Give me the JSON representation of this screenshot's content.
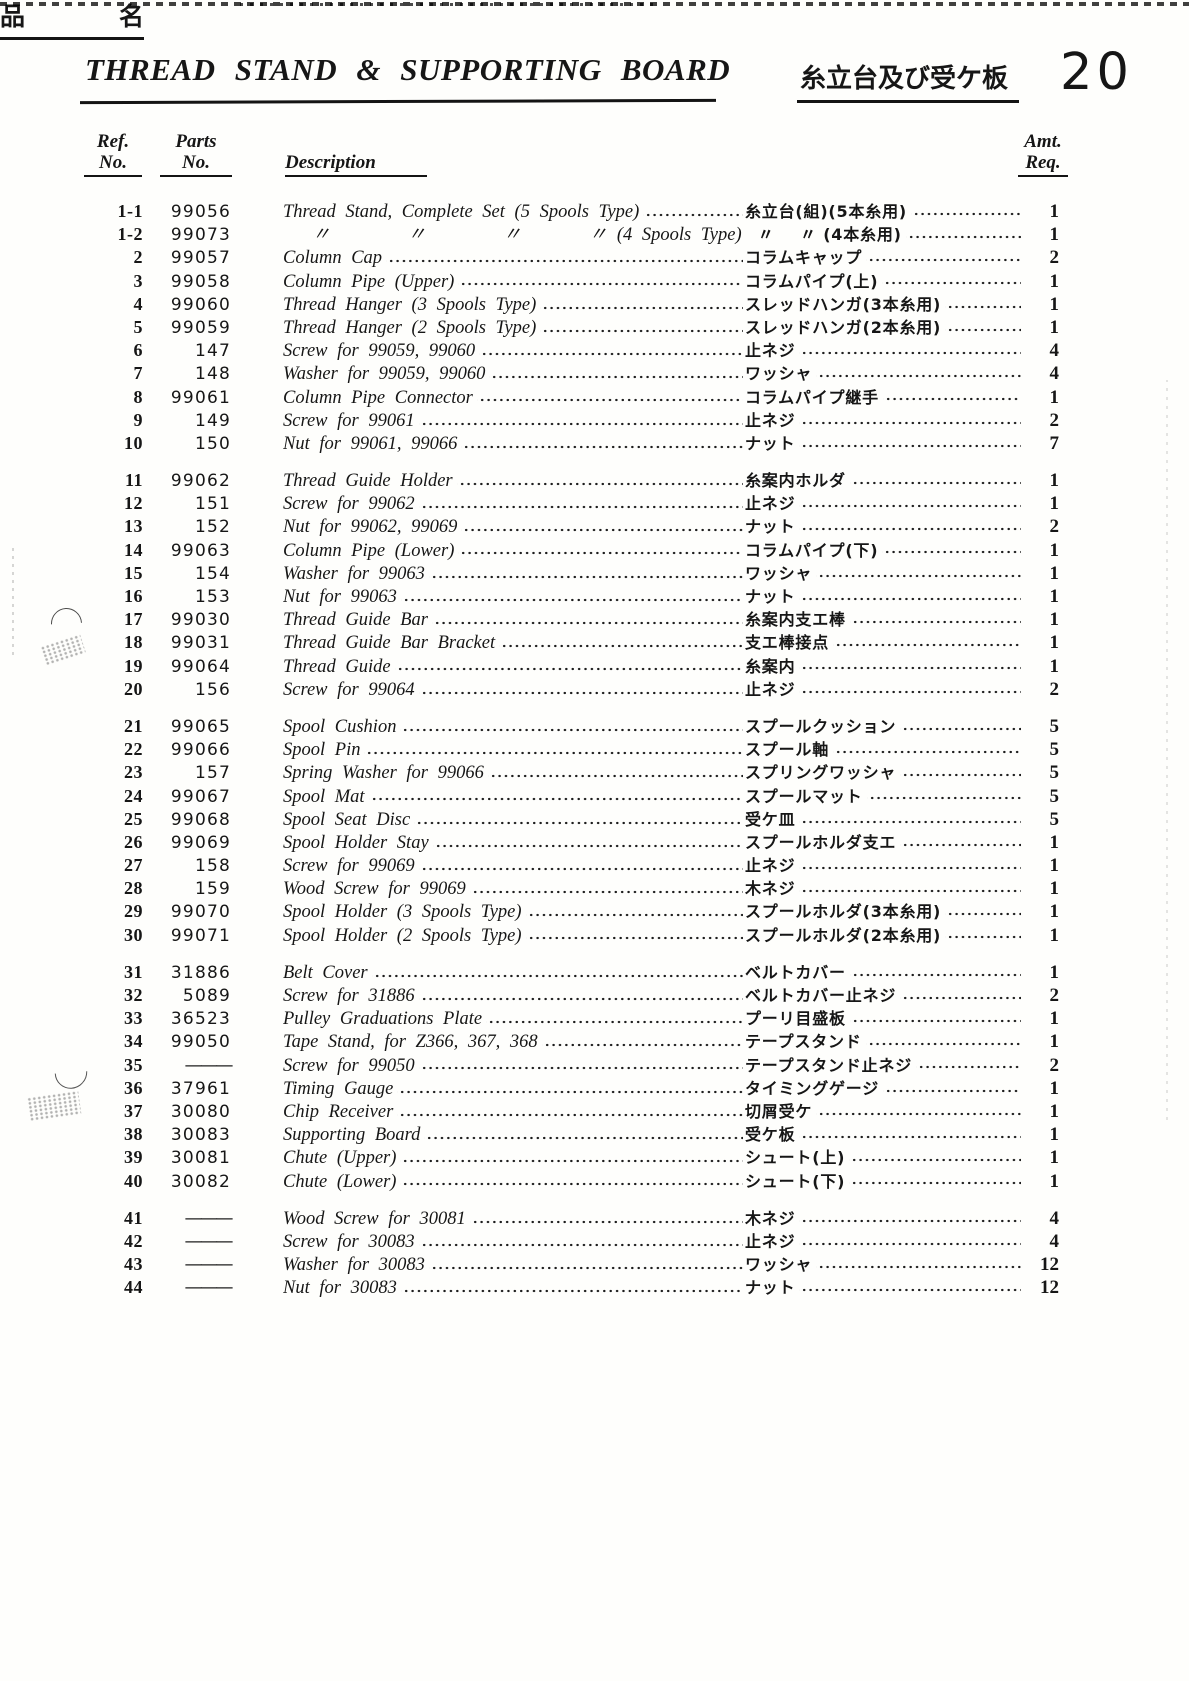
{
  "header": {
    "title_en": "THREAD STAND & SUPPORTING BOARD",
    "title_jp": "糸立台及び受ケ板",
    "page_number": "20"
  },
  "columns": {
    "ref_line1": "Ref.",
    "ref_line2": "No.",
    "parts_line1": "Parts",
    "parts_line2": "No.",
    "description": "Description",
    "name_jp_char1": "品",
    "name_jp_char2": "名",
    "amt_line1": "Amt.",
    "amt_line2": "Req."
  },
  "parts_table": {
    "groups": [
      {
        "rows": [
          {
            "ref": "1-1",
            "parts": "99056",
            "description": "Thread Stand, Complete Set (5 Spools Type)",
            "name_jp": "糸立台(組)(5本糸用)",
            "qty": "1"
          },
          {
            "ref": "1-2",
            "parts": "99073",
            "description": "   〃        〃        〃       〃 (4 Spools Type)",
            "name_jp": "  〃    〃 (4本糸用)",
            "qty": "1"
          },
          {
            "ref": "2",
            "parts": "99057",
            "description": "Column Cap",
            "name_jp": "コラムキャップ",
            "qty": "2"
          },
          {
            "ref": "3",
            "parts": "99058",
            "description": "Column Pipe (Upper)",
            "name_jp": "コラムパイプ(上)",
            "qty": "1"
          },
          {
            "ref": "4",
            "parts": "99060",
            "description": "Thread Hanger (3 Spools Type)",
            "name_jp": "スレッドハンガ(3本糸用)",
            "qty": "1"
          },
          {
            "ref": "5",
            "parts": "99059",
            "description": "Thread Hanger (2 Spools Type)",
            "name_jp": "スレッドハンガ(2本糸用)",
            "qty": "1"
          },
          {
            "ref": "6",
            "parts": "147",
            "description": "Screw for 99059, 99060",
            "name_jp": "止ネジ",
            "qty": "4"
          },
          {
            "ref": "7",
            "parts": "148",
            "description": "Washer for 99059, 99060",
            "name_jp": "ワッシャ",
            "qty": "4"
          },
          {
            "ref": "8",
            "parts": "99061",
            "description": "Column Pipe Connector",
            "name_jp": "コラムパイプ継手",
            "qty": "1"
          },
          {
            "ref": "9",
            "parts": "149",
            "description": "Screw for 99061",
            "name_jp": "止ネジ",
            "qty": "2"
          },
          {
            "ref": "10",
            "parts": "150",
            "description": "Nut for 99061, 99066",
            "name_jp": "ナット",
            "qty": "7"
          }
        ]
      },
      {
        "rows": [
          {
            "ref": "11",
            "parts": "99062",
            "description": "Thread Guide Holder",
            "name_jp": "糸案内ホルダ",
            "qty": "1"
          },
          {
            "ref": "12",
            "parts": "151",
            "description": "Screw for 99062",
            "name_jp": "止ネジ",
            "qty": "1"
          },
          {
            "ref": "13",
            "parts": "152",
            "description": "Nut for 99062, 99069",
            "name_jp": "ナット",
            "qty": "2"
          },
          {
            "ref": "14",
            "parts": "99063",
            "description": "Column Pipe (Lower)",
            "name_jp": "コラムパイプ(下)",
            "qty": "1"
          },
          {
            "ref": "15",
            "parts": "154",
            "description": "Washer for 99063",
            "name_jp": "ワッシャ",
            "qty": "1"
          },
          {
            "ref": "16",
            "parts": "153",
            "description": "Nut for 99063",
            "name_jp": "ナット",
            "qty": "1"
          },
          {
            "ref": "17",
            "parts": "99030",
            "description": "Thread Guide Bar",
            "name_jp": "糸案内支エ棒",
            "qty": "1"
          },
          {
            "ref": "18",
            "parts": "99031",
            "description": "Thread Guide Bar Bracket",
            "name_jp": "支エ棒接点",
            "qty": "1"
          },
          {
            "ref": "19",
            "parts": "99064",
            "description": "Thread Guide",
            "name_jp": "糸案内",
            "qty": "1"
          },
          {
            "ref": "20",
            "parts": "156",
            "description": "Screw for 99064",
            "name_jp": "止ネジ",
            "qty": "2"
          }
        ]
      },
      {
        "rows": [
          {
            "ref": "21",
            "parts": "99065",
            "description": "Spool Cushion",
            "name_jp": "スプールクッション",
            "qty": "5"
          },
          {
            "ref": "22",
            "parts": "99066",
            "description": "Spool Pin",
            "name_jp": "スプール軸",
            "qty": "5"
          },
          {
            "ref": "23",
            "parts": "157",
            "description": "Spring Washer for 99066",
            "name_jp": "スプリングワッシャ",
            "qty": "5"
          },
          {
            "ref": "24",
            "parts": "99067",
            "description": "Spool Mat",
            "name_jp": "スプールマット",
            "qty": "5"
          },
          {
            "ref": "25",
            "parts": "99068",
            "description": "Spool Seat Disc",
            "name_jp": "受ケ皿",
            "qty": "5"
          },
          {
            "ref": "26",
            "parts": "99069",
            "description": "Spool Holder Stay",
            "name_jp": "スプールホルダ支エ",
            "qty": "1"
          },
          {
            "ref": "27",
            "parts": "158",
            "description": "Screw for 99069",
            "name_jp": "止ネジ",
            "qty": "1"
          },
          {
            "ref": "28",
            "parts": "159",
            "description": "Wood Screw for 99069",
            "name_jp": "木ネジ",
            "qty": "1"
          },
          {
            "ref": "29",
            "parts": "99070",
            "description": "Spool Holder (3 Spools Type)",
            "name_jp": "スプールホルダ(3本糸用)",
            "qty": "1"
          },
          {
            "ref": "30",
            "parts": "99071",
            "description": "Spool Holder (2 Spools Type)",
            "name_jp": "スプールホルダ(2本糸用)",
            "qty": "1"
          }
        ]
      },
      {
        "rows": [
          {
            "ref": "31",
            "parts": "31886",
            "description": "Belt Cover",
            "name_jp": "ベルトカバー",
            "qty": "1"
          },
          {
            "ref": "32",
            "parts": "5089",
            "description": "Screw for 31886",
            "name_jp": "ベルトカバー止ネジ",
            "qty": "2"
          },
          {
            "ref": "33",
            "parts": "36523",
            "description": "Pulley Graduations Plate",
            "name_jp": "プーリ目盛板",
            "qty": "1"
          },
          {
            "ref": "34",
            "parts": "99050",
            "description": "Tape Stand, for Z366, 367, 368",
            "name_jp": "テープスタンド",
            "qty": "1"
          },
          {
            "ref": "35",
            "parts": "———",
            "description": "Screw for 99050",
            "name_jp": "テープスタンド止ネジ",
            "qty": "2"
          },
          {
            "ref": "36",
            "parts": "37961",
            "description": "Timing Gauge",
            "name_jp": "タイミングゲージ",
            "qty": "1"
          },
          {
            "ref": "37",
            "parts": "30080",
            "description": "Chip Receiver",
            "name_jp": "切屑受ケ",
            "qty": "1"
          },
          {
            "ref": "38",
            "parts": "30083",
            "description": "Supporting Board",
            "name_jp": "受ケ板",
            "qty": "1"
          },
          {
            "ref": "39",
            "parts": "30081",
            "description": "Chute (Upper)",
            "name_jp": "シュート(上)",
            "qty": "1"
          },
          {
            "ref": "40",
            "parts": "30082",
            "description": "Chute (Lower)",
            "name_jp": "シュート(下)",
            "qty": "1"
          }
        ]
      },
      {
        "rows": [
          {
            "ref": "41",
            "parts": "———",
            "description": "Wood Screw for 30081",
            "name_jp": "木ネジ",
            "qty": "4"
          },
          {
            "ref": "42",
            "parts": "———",
            "description": "Screw for 30083",
            "name_jp": "止ネジ",
            "qty": "4"
          },
          {
            "ref": "43",
            "parts": "———",
            "description": "Washer for 30083",
            "name_jp": "ワッシャ",
            "qty": "12"
          },
          {
            "ref": "44",
            "parts": "———",
            "description": "Nut for 30083",
            "name_jp": "ナット",
            "qty": "12"
          }
        ]
      }
    ]
  }
}
